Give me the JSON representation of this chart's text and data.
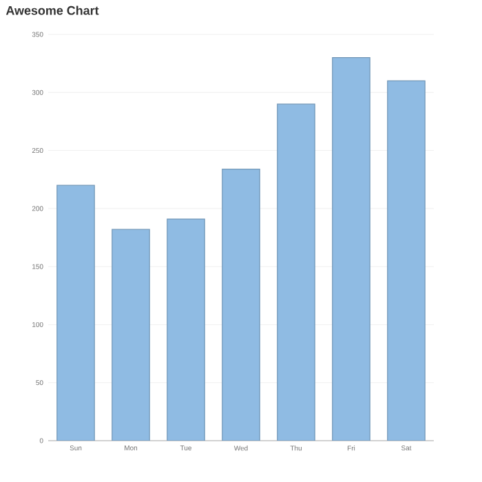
{
  "chart_data": {
    "type": "bar",
    "title": "Awesome Chart",
    "categories": [
      "Sun",
      "Mon",
      "Tue",
      "Wed",
      "Thu",
      "Fri",
      "Sat"
    ],
    "values": [
      220,
      182,
      191,
      234,
      290,
      330,
      310
    ],
    "color": "#8fbbe3",
    "ylim": [
      0,
      350
    ],
    "yticks": [
      0,
      50,
      100,
      150,
      200,
      250,
      300,
      350
    ],
    "grid": "y"
  }
}
